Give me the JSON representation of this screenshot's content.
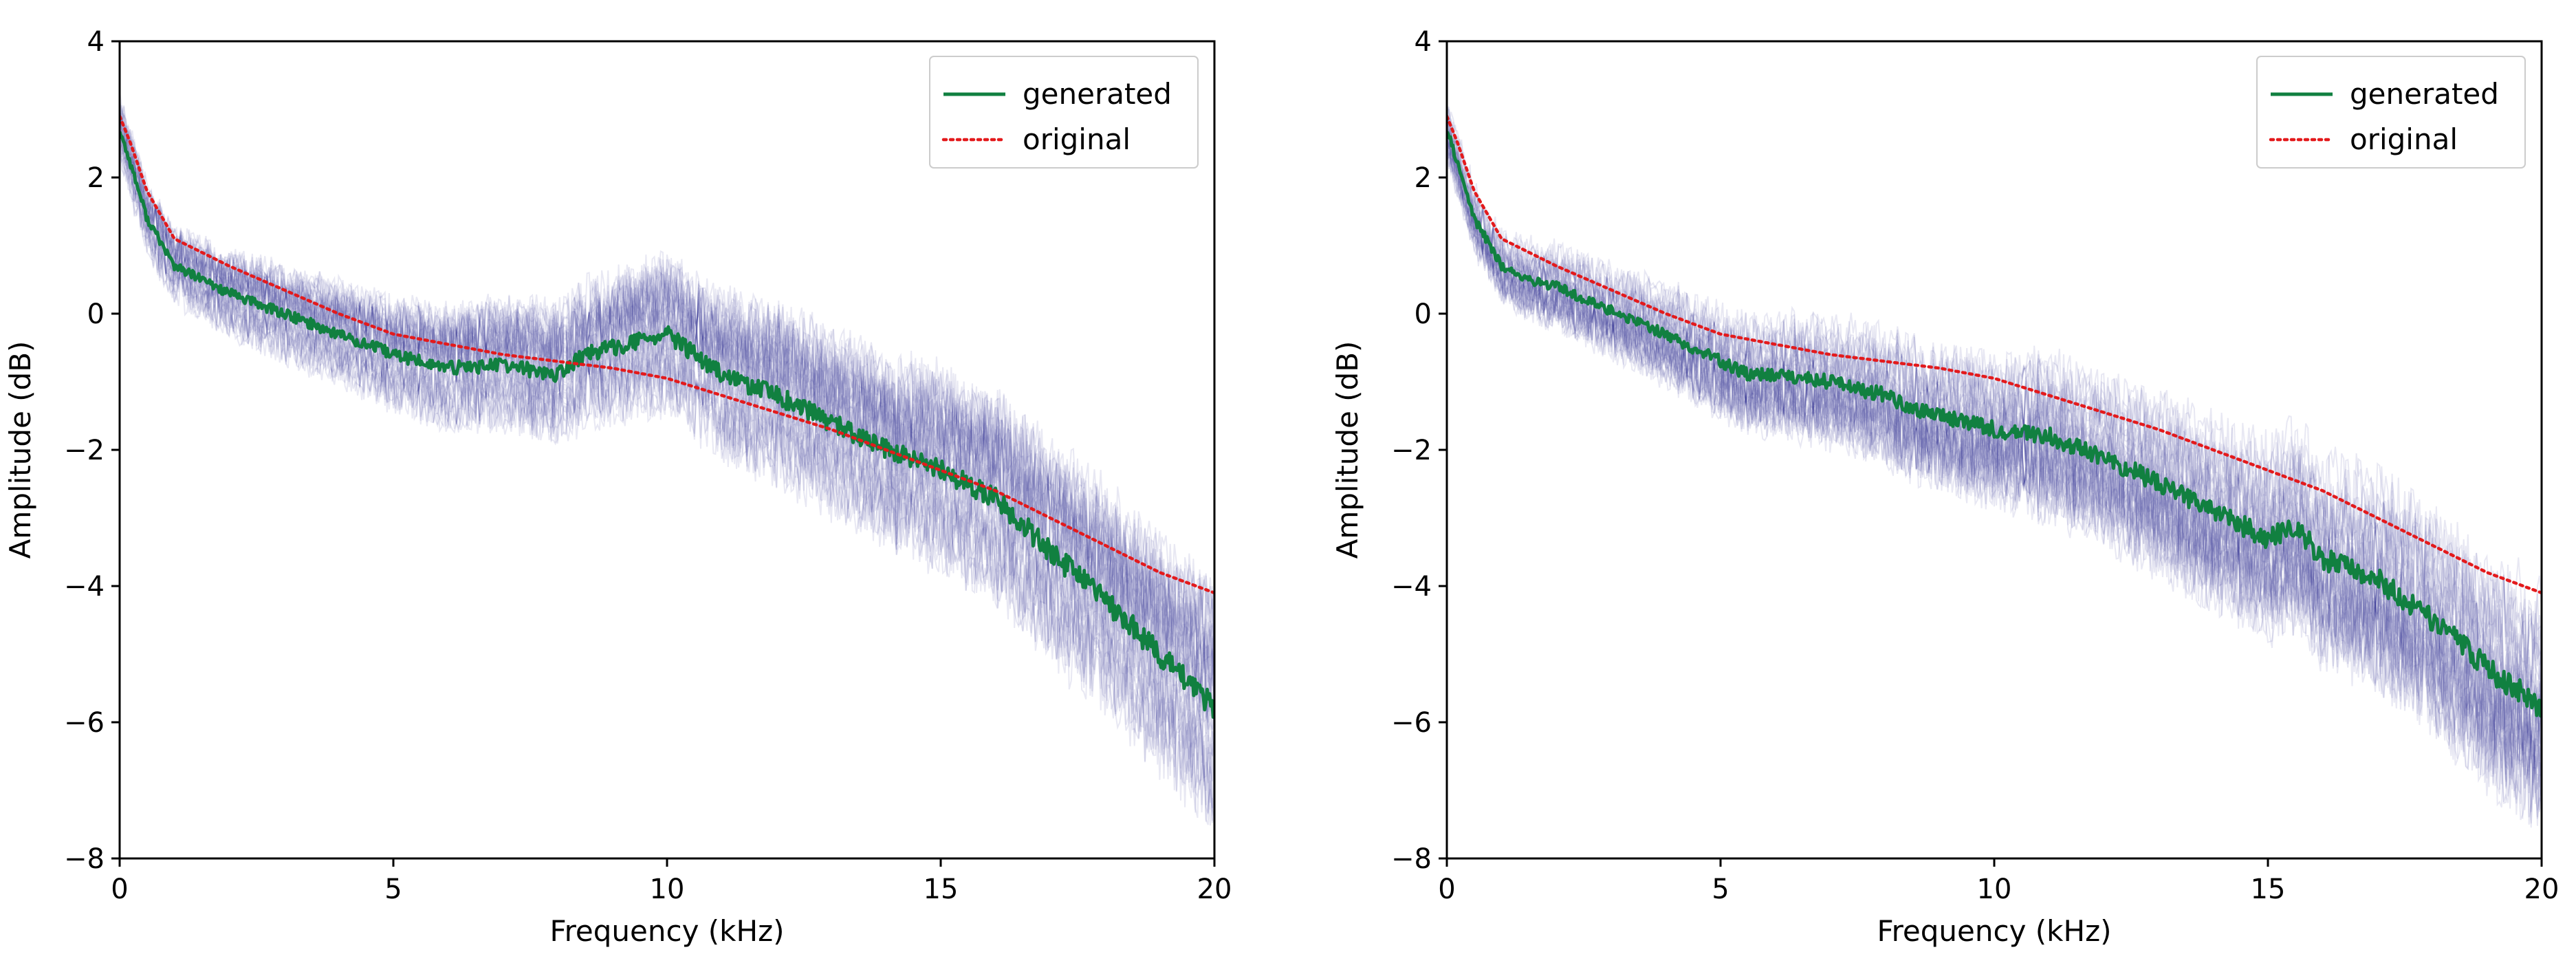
{
  "chart_data": [
    {
      "type": "line",
      "title": "",
      "xlabel": "Frequency (kHz)",
      "ylabel": "Amplitude (dB)",
      "xlim": [
        0,
        20
      ],
      "ylim": [
        -8,
        4
      ],
      "xticks": [
        "0",
        "5",
        "10",
        "15",
        "20"
      ],
      "yticks": [
        "4",
        "2",
        "0",
        "−2",
        "−4",
        "−6",
        "−8"
      ],
      "legend_position": "top-right",
      "background_band": {
        "name": "individual spectra",
        "color": "#3f3fa0",
        "count": 40,
        "opacity": 0.12
      },
      "series": [
        {
          "name": "generated",
          "style": "solid",
          "color": "#118040",
          "x": [
            0,
            0.2,
            0.5,
            1,
            1.5,
            2,
            3,
            4,
            5,
            6,
            7,
            8,
            8.5,
            9,
            9.5,
            10,
            10.5,
            11,
            12,
            13,
            14,
            15,
            16,
            17,
            18,
            19,
            20
          ],
          "y": [
            2.7,
            2.2,
            1.4,
            0.7,
            0.5,
            0.3,
            0.0,
            -0.3,
            -0.6,
            -0.8,
            -0.75,
            -0.9,
            -0.6,
            -0.5,
            -0.4,
            -0.3,
            -0.6,
            -0.9,
            -1.2,
            -1.6,
            -2.0,
            -2.3,
            -2.7,
            -3.5,
            -4.2,
            -5.0,
            -5.8
          ]
        },
        {
          "name": "original",
          "style": "dotted",
          "color": "#e31a1c",
          "x": [
            0,
            0.2,
            0.5,
            1,
            1.5,
            2,
            3,
            4,
            5,
            6,
            7,
            8,
            9,
            10,
            11,
            12,
            13,
            14,
            15,
            16,
            17,
            18,
            19,
            20
          ],
          "y": [
            2.9,
            2.5,
            1.8,
            1.1,
            0.9,
            0.7,
            0.35,
            0.0,
            -0.3,
            -0.45,
            -0.6,
            -0.7,
            -0.8,
            -0.95,
            -1.2,
            -1.45,
            -1.7,
            -2.0,
            -2.3,
            -2.6,
            -3.0,
            -3.4,
            -3.8,
            -4.1
          ]
        }
      ]
    },
    {
      "type": "line",
      "title": "",
      "xlabel": "Frequency (kHz)",
      "ylabel": "Amplitude (dB)",
      "xlim": [
        0,
        20
      ],
      "ylim": [
        -8,
        4
      ],
      "xticks": [
        "0",
        "5",
        "10",
        "15",
        "20"
      ],
      "yticks": [
        "4",
        "2",
        "0",
        "−2",
        "−4",
        "−6",
        "−8"
      ],
      "legend_position": "top-right",
      "background_band": {
        "name": "individual spectra",
        "color": "#3f3fa0",
        "count": 40,
        "opacity": 0.12
      },
      "series": [
        {
          "name": "generated",
          "style": "solid",
          "color": "#118040",
          "x": [
            0,
            0.2,
            0.5,
            1,
            1.5,
            2,
            3,
            4,
            5,
            5.5,
            6,
            7,
            8,
            8.5,
            9,
            10,
            11,
            12,
            13,
            14,
            15,
            15.5,
            16,
            17,
            18,
            19,
            20
          ],
          "y": [
            2.7,
            2.2,
            1.4,
            0.7,
            0.5,
            0.4,
            0.05,
            -0.3,
            -0.7,
            -0.9,
            -0.9,
            -1.0,
            -1.2,
            -1.4,
            -1.5,
            -1.7,
            -1.8,
            -2.1,
            -2.5,
            -2.9,
            -3.3,
            -3.1,
            -3.6,
            -3.9,
            -4.5,
            -5.2,
            -5.8
          ]
        },
        {
          "name": "original",
          "style": "dotted",
          "color": "#e31a1c",
          "x": [
            0,
            0.2,
            0.5,
            1,
            1.5,
            2,
            3,
            4,
            5,
            6,
            7,
            8,
            9,
            10,
            11,
            12,
            13,
            14,
            15,
            16,
            17,
            18,
            19,
            20
          ],
          "y": [
            2.9,
            2.5,
            1.8,
            1.1,
            0.9,
            0.7,
            0.35,
            0.0,
            -0.3,
            -0.45,
            -0.6,
            -0.7,
            -0.8,
            -0.95,
            -1.2,
            -1.45,
            -1.7,
            -2.0,
            -2.3,
            -2.6,
            -3.0,
            -3.4,
            -3.8,
            -4.1
          ]
        }
      ]
    }
  ]
}
